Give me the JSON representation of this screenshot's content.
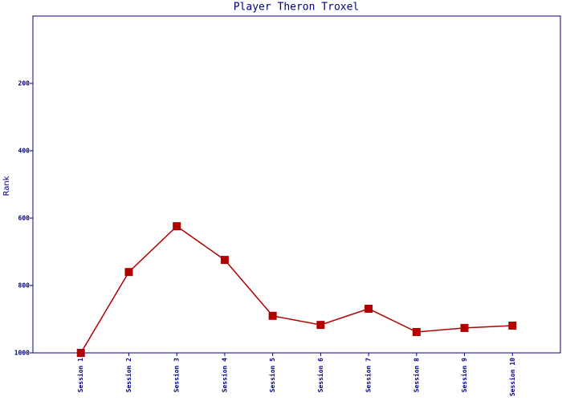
{
  "chart_data": {
    "type": "line",
    "title": "Player Theron Troxel",
    "y_label": "Rank",
    "categories": [
      "Session 1",
      "Session 2",
      "Session 3",
      "Session 4",
      "Session 5",
      "Session 6",
      "Session 7",
      "Session 8",
      "Session 9",
      "Session 10"
    ],
    "values": [
      1000,
      760,
      624,
      724,
      890,
      917,
      869,
      938,
      926,
      919
    ],
    "color": "#b00000",
    "ylim": [
      0,
      1000
    ],
    "y_inverted": true,
    "yticks": [
      200,
      400,
      600,
      800,
      1000
    ]
  }
}
